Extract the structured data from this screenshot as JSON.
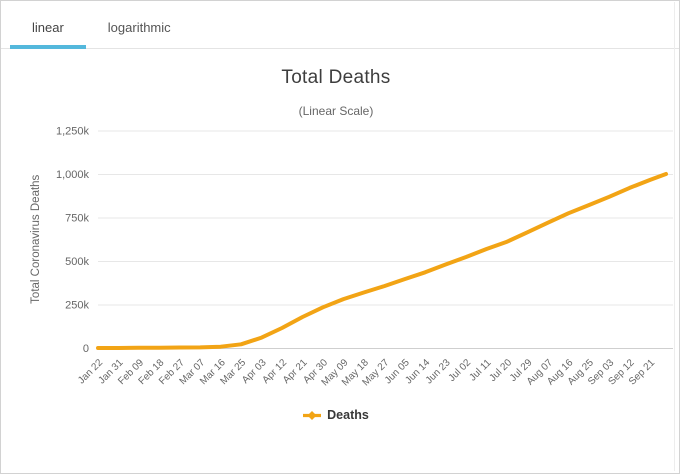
{
  "tabs": [
    {
      "label": "linear",
      "active": true
    },
    {
      "label": "logarithmic",
      "active": false
    }
  ],
  "colors": {
    "accent": "#54b8dc",
    "line": "#f2a415",
    "grid": "#e7e7e7",
    "axis_line": "#cfcfcf",
    "axis_text": "#666666",
    "right_rule": "#ededed"
  },
  "chart_data": {
    "type": "line",
    "title": "Total Deaths",
    "subtitle": "(Linear Scale)",
    "xlabel": "",
    "ylabel": "Total Coronavirus Deaths",
    "ylim": [
      0,
      1250000
    ],
    "y_tick_step": 250000,
    "grid": true,
    "legend_position": "bottom",
    "x_label_rotation": -45,
    "y_ticks": [
      {
        "value": 0,
        "label": "0"
      },
      {
        "value": 250000,
        "label": "250k"
      },
      {
        "value": 500000,
        "label": "500k"
      },
      {
        "value": 750000,
        "label": "750k"
      },
      {
        "value": 1000000,
        "label": "1,000k"
      },
      {
        "value": 1250000,
        "label": "1,250k"
      }
    ],
    "categories": [
      "Jan 22",
      "Jan 31",
      "Feb 09",
      "Feb 18",
      "Feb 27",
      "Mar 07",
      "Mar 16",
      "Mar 25",
      "Apr 03",
      "Apr 12",
      "Apr 21",
      "Apr 30",
      "May 09",
      "May 18",
      "May 27",
      "Jun 05",
      "Jun 14",
      "Jun 23",
      "Jul 02",
      "Jul 11",
      "Jul 20",
      "Jul 29",
      "Aug 07",
      "Aug 16",
      "Aug 25",
      "Sep 03",
      "Sep 12",
      "Sep 21"
    ],
    "category_day_step": 9,
    "series": [
      {
        "name": "Deaths",
        "color": "#f2a415",
        "points": [
          {
            "day": 0,
            "label": "Jan 22",
            "value": 17
          },
          {
            "day": 9,
            "label": "Jan 31",
            "value": 259
          },
          {
            "day": 18,
            "label": "Feb 09",
            "value": 910
          },
          {
            "day": 27,
            "label": "Feb 18",
            "value": 2000
          },
          {
            "day": 36,
            "label": "Feb 27",
            "value": 2860
          },
          {
            "day": 45,
            "label": "Mar 07",
            "value": 3560
          },
          {
            "day": 54,
            "label": "Mar 16",
            "value": 7200
          },
          {
            "day": 63,
            "label": "Mar 25",
            "value": 21500
          },
          {
            "day": 72,
            "label": "Apr 03",
            "value": 60000
          },
          {
            "day": 81,
            "label": "Apr 12",
            "value": 115000
          },
          {
            "day": 90,
            "label": "Apr 21",
            "value": 178000
          },
          {
            "day": 99,
            "label": "Apr 30",
            "value": 234000
          },
          {
            "day": 108,
            "label": "May 09",
            "value": 281000
          },
          {
            "day": 117,
            "label": "May 18",
            "value": 319000
          },
          {
            "day": 126,
            "label": "May 27",
            "value": 356000
          },
          {
            "day": 135,
            "label": "Jun 05",
            "value": 396000
          },
          {
            "day": 144,
            "label": "Jun 14",
            "value": 435000
          },
          {
            "day": 153,
            "label": "Jun 23",
            "value": 480000
          },
          {
            "day": 162,
            "label": "Jul 02",
            "value": 523000
          },
          {
            "day": 171,
            "label": "Jul 11",
            "value": 569000
          },
          {
            "day": 180,
            "label": "Jul 20",
            "value": 611000
          },
          {
            "day": 189,
            "label": "Jul 29",
            "value": 665000
          },
          {
            "day": 198,
            "label": "Aug 07",
            "value": 720000
          },
          {
            "day": 207,
            "label": "Aug 16",
            "value": 774000
          },
          {
            "day": 216,
            "label": "Aug 25",
            "value": 821000
          },
          {
            "day": 225,
            "label": "Sep 03",
            "value": 869000
          },
          {
            "day": 234,
            "label": "Sep 12",
            "value": 920000
          },
          {
            "day": 243,
            "label": "Sep 21",
            "value": 966000
          },
          {
            "day": 250,
            "label": "",
            "value": 1000000
          }
        ]
      }
    ]
  }
}
